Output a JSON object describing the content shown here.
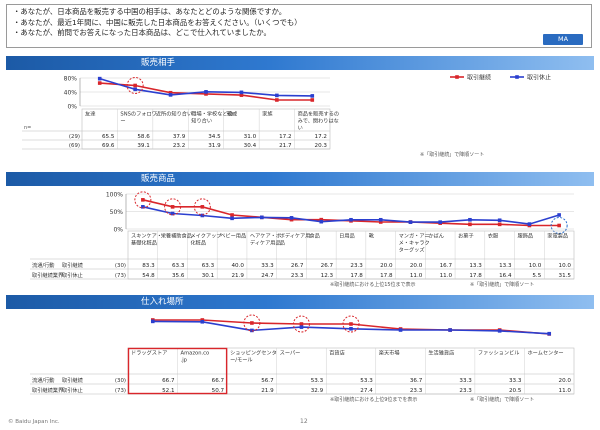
{
  "questions": [
    "・あなたが、日本商品を販売する中国の相手は、あなたとどのような関係ですか。",
    "・あなたが、最近1年間に、中国に販売した日本商品をお答えください。（いくつでも）",
    "・あなたが、前問でお答えになった日本商品は、どこで仕入れていましたか。"
  ],
  "badge": "MA",
  "sections": [
    "販売相手",
    "販売商品",
    "仕入れ場所"
  ],
  "footer": {
    "copyright": "© Baidu Japan Inc.",
    "page": "12"
  },
  "colors": {
    "continue": "#d9262b",
    "stopped": "#2b3fcf",
    "header": "#1c5aa6",
    "highlight": "#d9262b",
    "highlight_alt": "#2b6fcf"
  },
  "chart_data": [
    {
      "type": "line",
      "title": "販売相手",
      "ylim": [
        0,
        80
      ],
      "yticks": [
        "80%",
        "40%",
        "0%"
      ],
      "legend": [
        "取引継続",
        "取引休止"
      ],
      "legend_position": "top-right",
      "categories": [
        "友達",
        "SNSのフォロワー",
        "近所の知り合い",
        "職場・学校などの知り合い",
        "親戚",
        "家族",
        "商品を販売するのみで、関わりはない"
      ],
      "n_header": "n=",
      "series": [
        {
          "name": "取引継続",
          "n": "(29)",
          "values": [
            65.5,
            58.6,
            37.9,
            34.5,
            31.0,
            17.2,
            17.2
          ]
        },
        {
          "name": "取引休止",
          "n": "(69)",
          "values": [
            69.6,
            39.1,
            23.2,
            31.9,
            30.4,
            21.7,
            20.3
          ]
        }
      ],
      "highlight": [
        1
      ],
      "note": "※「取引継続」で降順ソート"
    },
    {
      "type": "line",
      "title": "販売商品",
      "ylim": [
        0,
        100
      ],
      "yticks": [
        "100%",
        "50%",
        "0%"
      ],
      "categories": [
        "スキンケア・基礎化粧品",
        "栄養補助食品",
        "メイクアップ化粧品",
        "ベビー用品",
        "ヘアケア・ボディケア用品",
        "ボディケア用品",
        "食品",
        "日用品",
        "靴",
        "マンガ・アニメ・キャラクターグッズ",
        "かばん",
        "お菓子",
        "衣服",
        "服飾品",
        "家電製品"
      ],
      "row_labels": {
        "group": "流通/行動",
        "prefix": "取引継続業界"
      },
      "series": [
        {
          "name": "取引継続",
          "n": "(30)",
          "values": [
            83.3,
            63.3,
            63.3,
            40.0,
            33.3,
            26.7,
            26.7,
            23.3,
            20.0,
            20.0,
            16.7,
            13.3,
            13.3,
            10.0,
            10.0
          ]
        },
        {
          "name": "取引休止",
          "n": "(73)",
          "values": [
            54.8,
            35.6,
            30.1,
            21.9,
            24.7,
            23.3,
            12.3,
            17.8,
            17.8,
            11.0,
            11.0,
            17.8,
            16.4,
            5.5,
            31.5
          ]
        }
      ],
      "highlight": [
        0,
        1,
        2
      ],
      "highlight_alt": [
        14
      ],
      "notes": [
        "※取引継続における上位15位まで表示",
        "※「取引継続」で降順ソート"
      ]
    },
    {
      "type": "line",
      "title": "仕入れ場所",
      "categories": [
        "ドラッグストア",
        "Amazon.co.jp",
        "ショッピングセンター/モール",
        "スーパー",
        "百貨店",
        "楽天市場",
        "生活雑貨店",
        "ファッションビル",
        "ホームセンター"
      ],
      "row_labels": {
        "group": "流通/行動",
        "prefix": "取引継続業界"
      },
      "series": [
        {
          "name": "取引継続",
          "n": "(30)",
          "values": [
            66.7,
            66.7,
            56.7,
            53.3,
            53.3,
            36.7,
            33.3,
            33.3,
            20.0
          ]
        },
        {
          "name": "取引休止",
          "n": "(73)",
          "values": [
            52.1,
            50.7,
            21.9,
            32.9,
            27.4,
            23.3,
            23.3,
            20.5,
            11.0
          ]
        }
      ],
      "highlight": [
        2,
        3,
        4
      ],
      "boxed": [
        0,
        1
      ],
      "notes": [
        "※取引継続における上位9位までを表示",
        "※「取引継続」で降順ソート"
      ]
    }
  ]
}
